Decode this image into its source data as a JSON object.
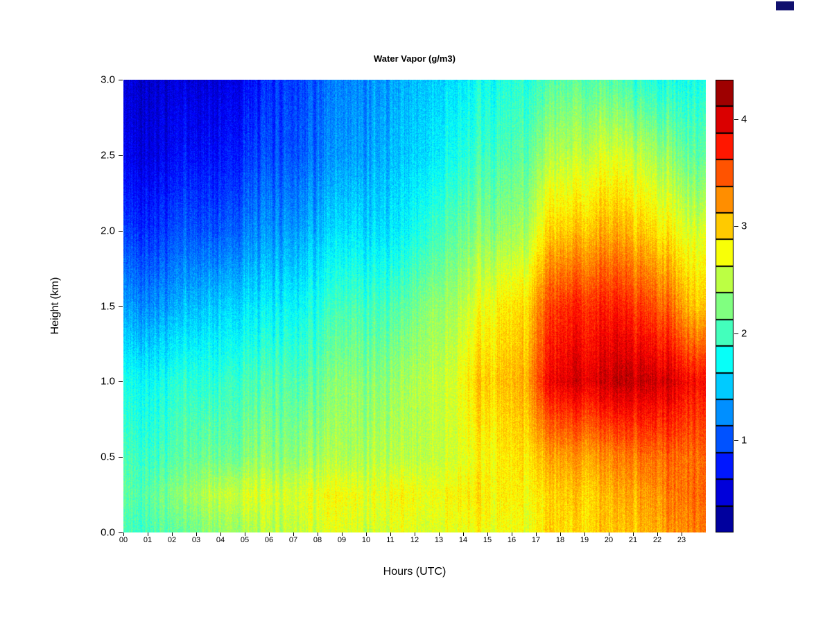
{
  "title": "Water Vapor (g/m3)",
  "xlabel": "Hours (UTC)",
  "ylabel": "Height (km)",
  "colors": {
    "background": "#ffffff",
    "text": "#000000",
    "artifact": "#10106e"
  },
  "chart_data": {
    "type": "heatmap",
    "title": "Water Vapor (g/m3)",
    "xlabel": "Hours (UTC)",
    "ylabel": "Height (km)",
    "x_range": [
      0,
      24
    ],
    "x_tick_labels": [
      "00",
      "01",
      "02",
      "03",
      "04",
      "05",
      "06",
      "07",
      "08",
      "09",
      "10",
      "11",
      "12",
      "13",
      "14",
      "15",
      "16",
      "17",
      "18",
      "19",
      "20",
      "21",
      "22",
      "23"
    ],
    "y_range": [
      0,
      3
    ],
    "y_ticks": [
      0,
      0.5,
      1,
      1.5,
      2,
      2.5,
      3
    ],
    "y_tick_labels": [
      "0.0",
      "0.5",
      "1.0",
      "1.5",
      "2.0",
      "2.5",
      "3.0"
    ],
    "heights": [
      0,
      0.25,
      0.5,
      1,
      1.5,
      2,
      2.5,
      3
    ],
    "values_by_height": [
      [
        2.0,
        2.1,
        2.1,
        2.3,
        2.4,
        2.4,
        2.5,
        2.6,
        2.6,
        2.6,
        2.6,
        2.7,
        2.6,
        2.7,
        2.7,
        2.7,
        2.7,
        2.9,
        2.9,
        3.0,
        3.0,
        3.1,
        3.2,
        3.3
      ],
      [
        2.1,
        2.2,
        2.3,
        2.5,
        2.6,
        2.6,
        2.6,
        2.7,
        2.7,
        2.7,
        2.7,
        2.8,
        2.7,
        2.8,
        2.8,
        2.8,
        2.8,
        2.9,
        3.0,
        3.0,
        3.1,
        3.2,
        3.3,
        3.4
      ],
      [
        2.0,
        2.0,
        2.1,
        2.2,
        2.2,
        2.3,
        2.3,
        2.4,
        2.4,
        2.4,
        2.5,
        2.5,
        2.5,
        2.6,
        2.7,
        2.8,
        2.9,
        3.1,
        3.2,
        3.2,
        3.3,
        3.4,
        3.4,
        3.4
      ],
      [
        1.8,
        1.8,
        1.9,
        1.9,
        2.0,
        2.0,
        2.1,
        2.1,
        2.2,
        2.3,
        2.3,
        2.4,
        2.5,
        2.6,
        2.9,
        3.0,
        3.1,
        3.8,
        4.0,
        4.0,
        4.1,
        4.1,
        4.0,
        3.8
      ],
      [
        1.3,
        1.3,
        1.4,
        1.5,
        1.6,
        1.6,
        1.7,
        1.8,
        1.9,
        2.0,
        2.0,
        2.1,
        2.3,
        2.4,
        2.6,
        2.8,
        2.9,
        3.5,
        3.7,
        3.7,
        3.7,
        3.6,
        3.4,
        3.0
      ],
      [
        0.9,
        0.9,
        1.0,
        1.0,
        1.1,
        1.2,
        1.3,
        1.4,
        1.5,
        1.6,
        1.6,
        1.7,
        1.9,
        2.1,
        2.2,
        2.3,
        2.4,
        2.9,
        3.0,
        3.1,
        3.1,
        3.0,
        2.8,
        2.6
      ],
      [
        0.6,
        0.6,
        0.7,
        0.7,
        0.8,
        0.9,
        1.0,
        1.1,
        1.2,
        1.3,
        1.4,
        1.5,
        1.6,
        1.8,
        1.9,
        2.0,
        2.1,
        2.4,
        2.5,
        2.6,
        2.6,
        2.5,
        2.3,
        2.1
      ],
      [
        0.5,
        0.5,
        0.5,
        0.5,
        0.6,
        0.7,
        0.9,
        1.0,
        1.1,
        1.2,
        1.3,
        1.4,
        1.5,
        1.6,
        1.7,
        1.8,
        1.9,
        2.0,
        2.1,
        2.1,
        2.0,
        1.9,
        1.8,
        1.8
      ]
    ],
    "colorbar": {
      "colormap": "jet",
      "domain": [
        0.14,
        4.37
      ],
      "cells": 17,
      "ticks": [
        1,
        2,
        3,
        4
      ],
      "tick_labels": [
        "1",
        "2",
        "3",
        "4"
      ]
    },
    "noise": {
      "seed": 42,
      "column_amp": 0.24,
      "pixel_amp": 0.17
    }
  }
}
